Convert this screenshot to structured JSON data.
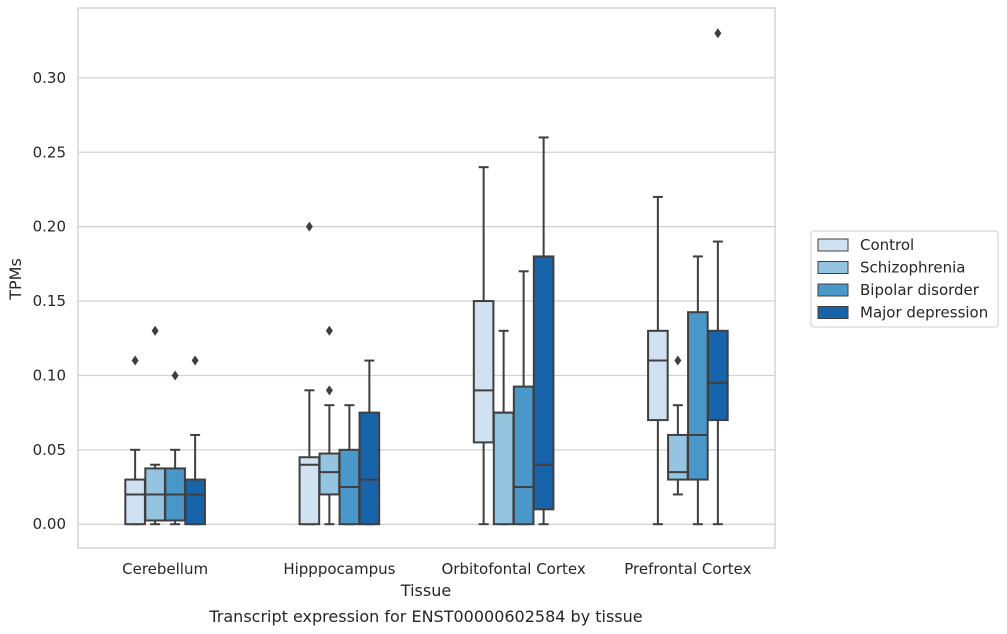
{
  "chart_data": {
    "type": "box",
    "title": "",
    "xlabel": "Tissue",
    "ylabel": "TPMs",
    "caption": "Transcript expression for ENST00000602584 by tissue",
    "ylim": [
      -0.016,
      0.347
    ],
    "yticks": [
      0.0,
      0.05,
      0.1,
      0.15,
      0.2,
      0.25,
      0.3
    ],
    "ytick_labels": [
      "0.00",
      "0.05",
      "0.10",
      "0.15",
      "0.20",
      "0.25",
      "0.30"
    ],
    "grid": true,
    "legend_position": "right",
    "categories": [
      "Cerebellum",
      "Hipppocampus",
      "Orbitofontal Cortex",
      "Prefrontal Cortex"
    ],
    "series": [
      {
        "name": "Control",
        "color": "#d0e1f2",
        "boxes": [
          {
            "whislo": 0.0,
            "q1": 0.0,
            "med": 0.02,
            "q3": 0.03,
            "whishi": 0.05,
            "fliers": [
              0.11
            ]
          },
          {
            "whislo": 0.0,
            "q1": 0.0,
            "med": 0.04,
            "q3": 0.045,
            "whishi": 0.09,
            "fliers": [
              0.2
            ]
          },
          {
            "whislo": 0.0,
            "q1": 0.055,
            "med": 0.09,
            "q3": 0.15,
            "whishi": 0.24,
            "fliers": []
          },
          {
            "whislo": 0.0,
            "q1": 0.07,
            "med": 0.11,
            "q3": 0.13,
            "whishi": 0.22,
            "fliers": []
          }
        ]
      },
      {
        "name": "Schizophrenia",
        "color": "#94c4df",
        "boxes": [
          {
            "whislo": 0.0,
            "q1": 0.0025,
            "med": 0.02,
            "q3": 0.0375,
            "whishi": 0.04,
            "fliers": [
              0.13
            ]
          },
          {
            "whislo": 0.0,
            "q1": 0.02,
            "med": 0.035,
            "q3": 0.0475,
            "whishi": 0.08,
            "fliers": [
              0.13,
              0.09
            ]
          },
          {
            "whislo": 0.0,
            "q1": 0.0,
            "med": 0.075,
            "q3": 0.075,
            "whishi": 0.13,
            "fliers": []
          },
          {
            "whislo": 0.02,
            "q1": 0.03,
            "med": 0.035,
            "q3": 0.06,
            "whishi": 0.08,
            "fliers": [
              0.11
            ]
          }
        ]
      },
      {
        "name": "Bipolar disorder",
        "color": "#4a98c9",
        "boxes": [
          {
            "whislo": 0.0,
            "q1": 0.0025,
            "med": 0.02,
            "q3": 0.0375,
            "whishi": 0.05,
            "fliers": [
              0.1
            ]
          },
          {
            "whislo": 0.0,
            "q1": 0.0,
            "med": 0.025,
            "q3": 0.05,
            "whishi": 0.08,
            "fliers": []
          },
          {
            "whislo": 0.0,
            "q1": 0.0,
            "med": 0.025,
            "q3": 0.0925,
            "whishi": 0.17,
            "fliers": []
          },
          {
            "whislo": 0.0,
            "q1": 0.03,
            "med": 0.06,
            "q3": 0.1425,
            "whishi": 0.18,
            "fliers": []
          }
        ]
      },
      {
        "name": "Major depression",
        "color": "#1764ab",
        "boxes": [
          {
            "whislo": 0.0,
            "q1": 0.0,
            "med": 0.02,
            "q3": 0.03,
            "whishi": 0.06,
            "fliers": [
              0.11
            ]
          },
          {
            "whislo": 0.0,
            "q1": 0.0,
            "med": 0.03,
            "q3": 0.075,
            "whishi": 0.11,
            "fliers": []
          },
          {
            "whislo": 0.0,
            "q1": 0.01,
            "med": 0.04,
            "q3": 0.18,
            "whishi": 0.26,
            "fliers": []
          },
          {
            "whislo": 0.0,
            "q1": 0.07,
            "med": 0.095,
            "q3": 0.13,
            "whishi": 0.19,
            "fliers": [
              0.33
            ]
          }
        ]
      }
    ]
  }
}
